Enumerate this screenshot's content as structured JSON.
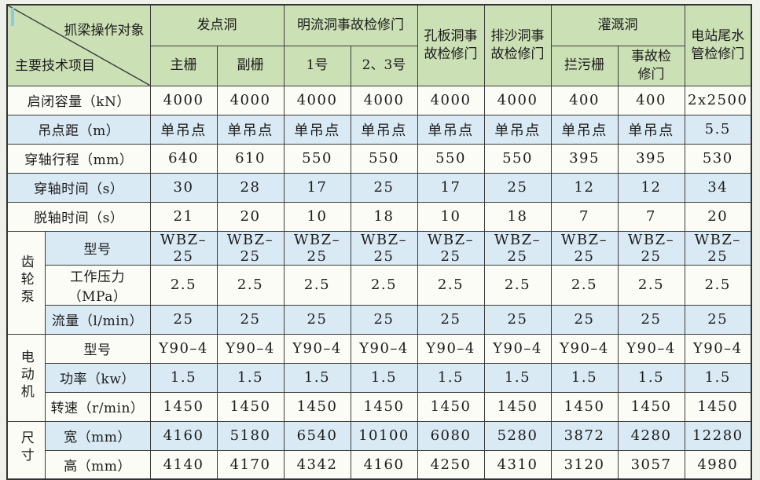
{
  "page": {
    "background": "#edf1e9"
  },
  "colors": {
    "header_green": "#cbe0b5",
    "row_blue": "#d9eaf5",
    "row_white": "#fcfcf6",
    "border": "#3c3c3c",
    "cursor_blue": "#8fc7e4",
    "text": "#1c1c1c"
  },
  "table": {
    "corner": {
      "top_right": "抓梁操作对象",
      "bottom_left": "主要技术项目"
    },
    "column_groups": [
      {
        "label": "发点洞"
      },
      {
        "label": "明流洞事故检修门"
      },
      {
        "label": "孔板洞事故检修门"
      },
      {
        "label": "排沙洞事故检修门"
      },
      {
        "label": "灌溉洞"
      },
      {
        "label": "电站尾水管检修门"
      }
    ],
    "sub_headers": [
      "主栅",
      "副栅",
      "1号",
      "2、3号",
      "拦污栅",
      "事故检修门"
    ],
    "rows": [
      {
        "label": "启闭容量（kN）",
        "shade": "white",
        "values": [
          "4000",
          "4000",
          "4000",
          "4000",
          "4000",
          "4000",
          "400",
          "400",
          "2x2500"
        ]
      },
      {
        "label": "吊点距（m）",
        "shade": "blue",
        "values": [
          "单吊点",
          "单吊点",
          "单吊点",
          "单吊点",
          "单吊点",
          "单吊点",
          "单吊点",
          "单吊点",
          "5.5"
        ]
      },
      {
        "label": "穿轴行程（mm）",
        "shade": "white",
        "values": [
          "640",
          "610",
          "550",
          "550",
          "550",
          "550",
          "395",
          "395",
          "530"
        ]
      },
      {
        "label": "穿轴时间（s）",
        "shade": "blue",
        "values": [
          "30",
          "28",
          "17",
          "25",
          "17",
          "25",
          "12",
          "12",
          "34"
        ]
      },
      {
        "label": "脱轴时间（s）",
        "shade": "white",
        "values": [
          "21",
          "20",
          "10",
          "18",
          "10",
          "18",
          "7",
          "7",
          "20"
        ]
      },
      {
        "group": "齿轮泵",
        "group_span": 3,
        "label": "型号",
        "shade": "blue",
        "values": [
          "WBZ–25",
          "WBZ–25",
          "WBZ–25",
          "WBZ–25",
          "WBZ–25",
          "WBZ–25",
          "WBZ–25",
          "WBZ–25",
          "WBZ–25"
        ]
      },
      {
        "grouped": true,
        "label": "工作压力（MPa）",
        "shade": "white",
        "values": [
          "2.5",
          "2.5",
          "2.5",
          "2.5",
          "2.5",
          "2.5",
          "2.5",
          "2.5",
          "2.5"
        ]
      },
      {
        "grouped": true,
        "label": "流量（l/min）",
        "shade": "blue",
        "values": [
          "25",
          "25",
          "25",
          "25",
          "25",
          "25",
          "25",
          "25",
          "25"
        ]
      },
      {
        "group": "电动机",
        "group_span": 3,
        "label": "型号",
        "shade": "white",
        "values": [
          "Y90–4",
          "Y90–4",
          "Y90–4",
          "Y90–4",
          "Y90–4",
          "Y90–4",
          "Y90–4",
          "Y90–4",
          "Y90–4"
        ]
      },
      {
        "grouped": true,
        "label": "功率（kw）",
        "shade": "blue",
        "values": [
          "1.5",
          "1.5",
          "1.5",
          "1.5",
          "1.5",
          "1.5",
          "1.5",
          "1.5",
          "1.5"
        ]
      },
      {
        "grouped": true,
        "label": "转速（r/min）",
        "shade": "white",
        "values": [
          "1450",
          "1450",
          "1450",
          "1450",
          "1450",
          "1450",
          "1450",
          "1450",
          "1450"
        ]
      },
      {
        "group": "尺寸",
        "group_span": 2,
        "label": "宽（mm）",
        "shade": "blue",
        "values": [
          "4160",
          "5180",
          "6540",
          "10100",
          "6080",
          "5280",
          "3872",
          "4280",
          "12280"
        ]
      },
      {
        "grouped": true,
        "label": "高（mm）",
        "shade": "white",
        "values": [
          "4140",
          "4170",
          "4342",
          "4160",
          "4250",
          "4310",
          "3120",
          "3057",
          "4980"
        ]
      }
    ]
  }
}
